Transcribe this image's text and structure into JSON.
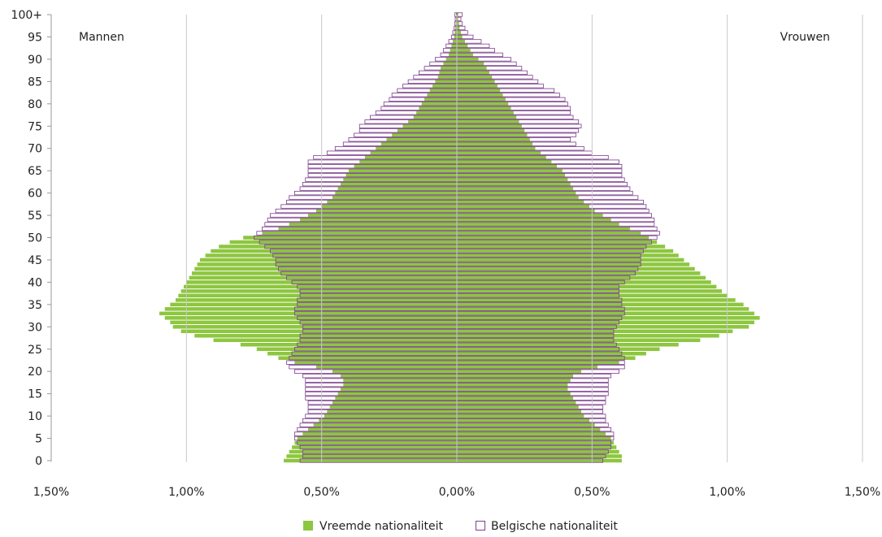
{
  "chart_data": {
    "type": "bar",
    "orientation": "horizontal-pyramid",
    "title": "",
    "side_labels": {
      "left": "Mannen",
      "right": "Vrouwen"
    },
    "x_tick_labels": [
      "1,50%",
      "1,00%",
      "0,50%",
      "0,00%",
      "0,50%",
      "1,00%",
      "1,50%"
    ],
    "x_ticks": [
      -1.5,
      -1.0,
      -0.5,
      0.0,
      0.5,
      1.0,
      1.5
    ],
    "xlim": [
      -1.5,
      1.5
    ],
    "y_ages_range": [
      0,
      100
    ],
    "y_tick_labels": [
      "0",
      "5",
      "10",
      "15",
      "20",
      "25",
      "30",
      "35",
      "40",
      "45",
      "50",
      "55",
      "60",
      "65",
      "70",
      "75",
      "80",
      "85",
      "90",
      "95",
      "100+"
    ],
    "grid": "vertical",
    "legend_position": "bottom",
    "colors": {
      "foreign": "#8dc63f",
      "belgian_border": "#7b3f8c",
      "belgian_fill": "#ffffff",
      "grid": "#c8c8c8",
      "axis": "#999999"
    },
    "series": [
      {
        "name": "Vreemde nationaliteit",
        "key": "foreign",
        "men": [
          0.64,
          0.63,
          0.62,
          0.61,
          0.6,
          0.59,
          0.57,
          0.55,
          0.53,
          0.51,
          0.49,
          0.48,
          0.47,
          0.46,
          0.45,
          0.44,
          0.43,
          0.42,
          0.42,
          0.43,
          0.46,
          0.52,
          0.6,
          0.66,
          0.7,
          0.74,
          0.8,
          0.9,
          0.97,
          1.02,
          1.05,
          1.06,
          1.08,
          1.1,
          1.08,
          1.06,
          1.04,
          1.03,
          1.02,
          1.01,
          1.0,
          0.99,
          0.98,
          0.97,
          0.96,
          0.95,
          0.93,
          0.91,
          0.88,
          0.84,
          0.79,
          0.72,
          0.66,
          0.62,
          0.58,
          0.55,
          0.52,
          0.5,
          0.48,
          0.46,
          0.45,
          0.44,
          0.43,
          0.42,
          0.41,
          0.4,
          0.38,
          0.36,
          0.34,
          0.32,
          0.3,
          0.28,
          0.26,
          0.24,
          0.22,
          0.2,
          0.18,
          0.16,
          0.15,
          0.14,
          0.13,
          0.12,
          0.11,
          0.1,
          0.09,
          0.08,
          0.07,
          0.065,
          0.06,
          0.05,
          0.04,
          0.03,
          0.025,
          0.02,
          0.015,
          0.01,
          0.008,
          0.006,
          0.004,
          0.003,
          0.003
        ],
        "women": [
          0.61,
          0.61,
          0.6,
          0.59,
          0.58,
          0.57,
          0.55,
          0.53,
          0.51,
          0.49,
          0.47,
          0.46,
          0.45,
          0.44,
          0.43,
          0.42,
          0.41,
          0.41,
          0.42,
          0.43,
          0.46,
          0.52,
          0.6,
          0.66,
          0.7,
          0.75,
          0.82,
          0.9,
          0.97,
          1.02,
          1.08,
          1.1,
          1.12,
          1.1,
          1.08,
          1.06,
          1.03,
          1.0,
          0.98,
          0.96,
          0.94,
          0.92,
          0.9,
          0.88,
          0.86,
          0.84,
          0.82,
          0.8,
          0.77,
          0.74,
          0.71,
          0.68,
          0.64,
          0.6,
          0.57,
          0.54,
          0.51,
          0.49,
          0.47,
          0.45,
          0.44,
          0.43,
          0.42,
          0.41,
          0.4,
          0.39,
          0.37,
          0.35,
          0.33,
          0.31,
          0.29,
          0.28,
          0.27,
          0.26,
          0.25,
          0.24,
          0.23,
          0.22,
          0.21,
          0.2,
          0.19,
          0.18,
          0.17,
          0.16,
          0.15,
          0.14,
          0.13,
          0.12,
          0.11,
          0.1,
          0.08,
          0.06,
          0.05,
          0.04,
          0.03,
          0.02,
          0.015,
          0.01,
          0.008,
          0.005,
          0.005
        ]
      },
      {
        "name": "Belgische nationaliteit",
        "key": "belgian",
        "men": [
          0.58,
          0.57,
          0.57,
          0.58,
          0.59,
          0.6,
          0.6,
          0.59,
          0.58,
          0.57,
          0.56,
          0.55,
          0.55,
          0.55,
          0.56,
          0.56,
          0.56,
          0.56,
          0.56,
          0.57,
          0.6,
          0.62,
          0.63,
          0.62,
          0.61,
          0.6,
          0.59,
          0.58,
          0.58,
          0.57,
          0.57,
          0.58,
          0.59,
          0.6,
          0.6,
          0.59,
          0.59,
          0.58,
          0.58,
          0.59,
          0.61,
          0.63,
          0.65,
          0.66,
          0.67,
          0.67,
          0.68,
          0.69,
          0.71,
          0.73,
          0.75,
          0.74,
          0.72,
          0.71,
          0.7,
          0.69,
          0.67,
          0.65,
          0.63,
          0.62,
          0.6,
          0.58,
          0.57,
          0.56,
          0.55,
          0.55,
          0.55,
          0.55,
          0.53,
          0.48,
          0.45,
          0.42,
          0.4,
          0.38,
          0.36,
          0.36,
          0.34,
          0.32,
          0.3,
          0.28,
          0.27,
          0.25,
          0.24,
          0.22,
          0.2,
          0.18,
          0.16,
          0.14,
          0.12,
          0.1,
          0.08,
          0.06,
          0.05,
          0.04,
          0.03,
          0.02,
          0.015,
          0.01,
          0.008,
          0.006,
          0.008
        ],
        "women": [
          0.54,
          0.55,
          0.56,
          0.57,
          0.57,
          0.58,
          0.58,
          0.57,
          0.56,
          0.55,
          0.55,
          0.54,
          0.54,
          0.55,
          0.55,
          0.56,
          0.56,
          0.56,
          0.56,
          0.57,
          0.6,
          0.62,
          0.62,
          0.62,
          0.61,
          0.6,
          0.59,
          0.58,
          0.58,
          0.58,
          0.59,
          0.6,
          0.61,
          0.62,
          0.62,
          0.61,
          0.61,
          0.6,
          0.6,
          0.6,
          0.62,
          0.64,
          0.66,
          0.67,
          0.68,
          0.68,
          0.68,
          0.69,
          0.7,
          0.72,
          0.74,
          0.75,
          0.74,
          0.73,
          0.73,
          0.72,
          0.71,
          0.7,
          0.69,
          0.67,
          0.65,
          0.64,
          0.63,
          0.62,
          0.61,
          0.61,
          0.61,
          0.6,
          0.56,
          0.5,
          0.47,
          0.44,
          0.42,
          0.44,
          0.45,
          0.46,
          0.45,
          0.43,
          0.42,
          0.42,
          0.41,
          0.4,
          0.38,
          0.36,
          0.32,
          0.3,
          0.28,
          0.26,
          0.24,
          0.22,
          0.2,
          0.17,
          0.14,
          0.12,
          0.09,
          0.06,
          0.04,
          0.03,
          0.02,
          0.015,
          0.02
        ]
      }
    ]
  }
}
